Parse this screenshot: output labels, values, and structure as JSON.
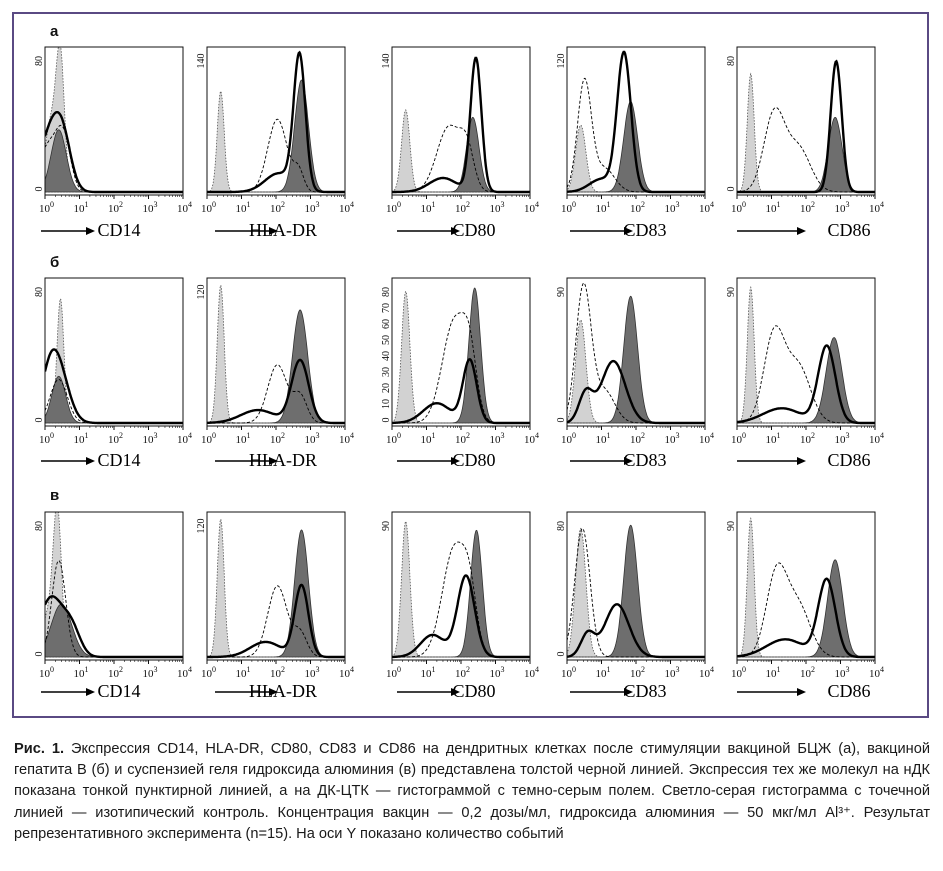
{
  "figure": {
    "rows": [
      {
        "letter": "а",
        "panels": [
          {
            "marker": "CD14",
            "y_ticks": [
              "80",
              "0"
            ]
          },
          {
            "marker": "HLA-DR",
            "y_ticks": [
              "140"
            ]
          },
          {
            "marker": "CD80",
            "y_ticks": [
              "140"
            ]
          },
          {
            "marker": "CD83",
            "y_ticks": [
              "120"
            ]
          },
          {
            "marker": "CD86",
            "y_ticks": [
              "80",
              "0"
            ]
          }
        ]
      },
      {
        "letter": "б",
        "panels": [
          {
            "marker": "CD14",
            "y_ticks": [
              "80",
              "0"
            ]
          },
          {
            "marker": "HLA-DR",
            "y_ticks": [
              "120"
            ]
          },
          {
            "marker": "CD80",
            "y_ticks": [
              "0",
              "10",
              "20",
              "30",
              "40",
              "50",
              "60",
              "70",
              "80"
            ]
          },
          {
            "marker": "CD83",
            "y_ticks": [
              "90",
              "0"
            ]
          },
          {
            "marker": "CD86",
            "y_ticks": [
              "90"
            ]
          }
        ]
      },
      {
        "letter": "в",
        "panels": [
          {
            "marker": "CD14",
            "y_ticks": [
              "80",
              "0"
            ]
          },
          {
            "marker": "HLA-DR",
            "y_ticks": [
              "120"
            ]
          },
          {
            "marker": "CD80",
            "y_ticks": [
              "90"
            ]
          },
          {
            "marker": "CD83",
            "y_ticks": [
              "80",
              "0"
            ]
          },
          {
            "marker": "CD86",
            "y_ticks": [
              "90"
            ]
          }
        ]
      }
    ],
    "x_tick_base": "10",
    "x_tick_exponents": [
      "0",
      "1",
      "2",
      "3",
      "4"
    ]
  },
  "caption": {
    "lead": "Рис. 1.",
    "text": "Экспрессия CD14, HLA-DR, CD80, CD83 и CD86 на дендритных клетках после стимуляции вакциной БЦЖ (а), вакциной гепатита В (б) и суспензией геля гидроксида алюминия (в) представлена толстой черной линией. Экспрессия тех же молекул на нДК показана тонкой пунктирной линией, а на ДК-ЦТК — гистограммой с темно-серым полем. Светло-серая гистограмма с точечной линией — изотипический контроль. Концентрация вакцин — 0,2 дозы/мл, гидроксида алюминия — 50 мкг/мл Al³⁺. Результат репрезентативного эксперимента (n=15). На оси Y показано количество событий"
  },
  "colors": {
    "frame": "#5a4a83",
    "isotype_fill": "#d2d2d2",
    "ctk_fill": "#6e6e6e",
    "vaccine_line": "#000000",
    "ndk_line": "#000000"
  },
  "histograms": {
    "x_scale": "log",
    "x_range": [
      1,
      10000
    ],
    "y_unit": "events",
    "series": [
      {
        "row": "а",
        "marker": "CD14",
        "y_max": 90,
        "isotype": [
          {
            "m": 2.8,
            "s": 0.12,
            "h": 80
          },
          {
            "m": 1.5,
            "s": 0.18,
            "h": 45
          }
        ],
        "ctk": [
          {
            "m": 2.5,
            "s": 0.22,
            "h": 40
          }
        ],
        "ndk": [
          {
            "m": 1.3,
            "s": 0.3,
            "h": 30
          },
          {
            "m": 3.5,
            "s": 0.2,
            "h": 30
          }
        ],
        "vaccine": [
          {
            "m": 1.3,
            "s": 0.3,
            "h": 34
          },
          {
            "m": 3.2,
            "s": 0.25,
            "h": 32
          }
        ]
      },
      {
        "row": "а",
        "marker": "HLA-DR",
        "y_max": 150,
        "isotype": [
          {
            "m": 2.5,
            "s": 0.1,
            "h": 108
          }
        ],
        "ctk": [
          {
            "m": 550,
            "s": 0.2,
            "h": 120
          }
        ],
        "ndk": [
          {
            "m": 110,
            "s": 0.28,
            "h": 78
          },
          {
            "m": 450,
            "s": 0.15,
            "h": 22
          }
        ],
        "vaccine": [
          {
            "m": 480,
            "s": 0.17,
            "h": 143
          },
          {
            "m": 120,
            "s": 0.4,
            "h": 20
          }
        ]
      },
      {
        "row": "а",
        "marker": "CD80",
        "y_max": 150,
        "isotype": [
          {
            "m": 2.5,
            "s": 0.12,
            "h": 88
          }
        ],
        "ctk": [
          {
            "m": 220,
            "s": 0.18,
            "h": 80
          }
        ],
        "ndk": [
          {
            "m": 45,
            "s": 0.35,
            "h": 70
          },
          {
            "m": 150,
            "s": 0.2,
            "h": 38
          }
        ],
        "vaccine": [
          {
            "m": 270,
            "s": 0.16,
            "h": 143
          },
          {
            "m": 30,
            "s": 0.4,
            "h": 15
          }
        ]
      },
      {
        "row": "а",
        "marker": "CD83",
        "y_max": 130,
        "isotype": [
          {
            "m": 2.5,
            "s": 0.15,
            "h": 62
          }
        ],
        "ctk": [
          {
            "m": 70,
            "s": 0.2,
            "h": 84
          }
        ],
        "ndk": [
          {
            "m": 3.2,
            "s": 0.2,
            "h": 102
          },
          {
            "m": 12,
            "s": 0.3,
            "h": 22
          }
        ],
        "vaccine": [
          {
            "m": 45,
            "s": 0.2,
            "h": 128
          },
          {
            "m": 10,
            "s": 0.35,
            "h": 12
          }
        ]
      },
      {
        "row": "а",
        "marker": "CD86",
        "y_max": 90,
        "isotype": [
          {
            "m": 2.5,
            "s": 0.1,
            "h": 76
          }
        ],
        "ctk": [
          {
            "m": 700,
            "s": 0.2,
            "h": 48
          }
        ],
        "ndk": [
          {
            "m": 12,
            "s": 0.3,
            "h": 50
          },
          {
            "m": 60,
            "s": 0.35,
            "h": 28
          }
        ],
        "vaccine": [
          {
            "m": 750,
            "s": 0.16,
            "h": 84
          }
        ]
      },
      {
        "row": "б",
        "marker": "CD14",
        "y_max": 90,
        "isotype": [
          {
            "m": 2.8,
            "s": 0.1,
            "h": 80
          }
        ],
        "ctk": [
          {
            "m": 2.5,
            "s": 0.2,
            "h": 30
          }
        ],
        "ndk": [
          {
            "m": 2.5,
            "s": 0.25,
            "h": 28
          }
        ],
        "vaccine": [
          {
            "m": 2.5,
            "s": 0.3,
            "h": 32
          },
          {
            "m": 1.3,
            "s": 0.25,
            "h": 22
          }
        ]
      },
      {
        "row": "б",
        "marker": "HLA-DR",
        "y_max": 130,
        "isotype": [
          {
            "m": 2.5,
            "s": 0.1,
            "h": 128
          }
        ],
        "ctk": [
          {
            "m": 500,
            "s": 0.22,
            "h": 105
          }
        ],
        "ndk": [
          {
            "m": 110,
            "s": 0.28,
            "h": 54
          },
          {
            "m": 500,
            "s": 0.2,
            "h": 25
          }
        ],
        "vaccine": [
          {
            "m": 500,
            "s": 0.25,
            "h": 58
          },
          {
            "m": 30,
            "s": 0.5,
            "h": 12
          }
        ]
      },
      {
        "row": "б",
        "marker": "CD80",
        "y_max": 85,
        "isotype": [
          {
            "m": 2.5,
            "s": 0.12,
            "h": 80
          }
        ],
        "ctk": [
          {
            "m": 250,
            "s": 0.17,
            "h": 82
          }
        ],
        "ndk": [
          {
            "m": 65,
            "s": 0.35,
            "h": 62
          },
          {
            "m": 180,
            "s": 0.2,
            "h": 30
          }
        ],
        "vaccine": [
          {
            "m": 180,
            "s": 0.2,
            "h": 38
          },
          {
            "m": 20,
            "s": 0.4,
            "h": 12
          }
        ]
      },
      {
        "row": "б",
        "marker": "CD83",
        "y_max": 95,
        "isotype": [
          {
            "m": 2.5,
            "s": 0.15,
            "h": 70
          }
        ],
        "ctk": [
          {
            "m": 70,
            "s": 0.2,
            "h": 86
          }
        ],
        "ndk": [
          {
            "m": 3.0,
            "s": 0.22,
            "h": 92
          },
          {
            "m": 12,
            "s": 0.3,
            "h": 22
          }
        ],
        "vaccine": [
          {
            "m": 22,
            "s": 0.35,
            "h": 42
          },
          {
            "m": 3.5,
            "s": 0.2,
            "h": 20
          }
        ]
      },
      {
        "row": "б",
        "marker": "CD86",
        "y_max": 95,
        "isotype": [
          {
            "m": 2.5,
            "s": 0.1,
            "h": 92
          }
        ],
        "ctk": [
          {
            "m": 650,
            "s": 0.23,
            "h": 58
          }
        ],
        "ndk": [
          {
            "m": 12,
            "s": 0.3,
            "h": 60
          },
          {
            "m": 60,
            "s": 0.35,
            "h": 38
          }
        ],
        "vaccine": [
          {
            "m": 400,
            "s": 0.25,
            "h": 52
          },
          {
            "m": 20,
            "s": 0.55,
            "h": 10
          }
        ]
      },
      {
        "row": "в",
        "marker": "CD14",
        "y_max": 90,
        "isotype": [
          {
            "m": 2.3,
            "s": 0.12,
            "h": 85
          },
          {
            "m": 1.3,
            "s": 0.2,
            "h": 28
          }
        ],
        "ctk": [
          {
            "m": 3.0,
            "s": 0.3,
            "h": 34
          }
        ],
        "ndk": [
          {
            "m": 2.5,
            "s": 0.2,
            "h": 62
          }
        ],
        "vaccine": [
          {
            "m": 1.5,
            "s": 0.35,
            "h": 38
          },
          {
            "m": 6,
            "s": 0.25,
            "h": 16
          }
        ]
      },
      {
        "row": "в",
        "marker": "HLA-DR",
        "y_max": 130,
        "isotype": [
          {
            "m": 2.5,
            "s": 0.1,
            "h": 128
          }
        ],
        "ctk": [
          {
            "m": 550,
            "s": 0.2,
            "h": 118
          }
        ],
        "ndk": [
          {
            "m": 110,
            "s": 0.28,
            "h": 66
          },
          {
            "m": 500,
            "s": 0.2,
            "h": 22
          }
        ],
        "vaccine": [
          {
            "m": 550,
            "s": 0.2,
            "h": 66
          },
          {
            "m": 50,
            "s": 0.45,
            "h": 14
          }
        ]
      },
      {
        "row": "в",
        "marker": "CD80",
        "y_max": 95,
        "isotype": [
          {
            "m": 2.5,
            "s": 0.12,
            "h": 92
          }
        ],
        "ctk": [
          {
            "m": 280,
            "s": 0.17,
            "h": 86
          }
        ],
        "ndk": [
          {
            "m": 65,
            "s": 0.35,
            "h": 74
          },
          {
            "m": 180,
            "s": 0.2,
            "h": 30
          }
        ],
        "vaccine": [
          {
            "m": 140,
            "s": 0.25,
            "h": 55
          },
          {
            "m": 15,
            "s": 0.35,
            "h": 15
          }
        ]
      },
      {
        "row": "в",
        "marker": "CD83",
        "y_max": 85,
        "isotype": [
          {
            "m": 2.5,
            "s": 0.15,
            "h": 78
          }
        ],
        "ctk": [
          {
            "m": 70,
            "s": 0.2,
            "h": 80
          }
        ],
        "ndk": [
          {
            "m": 2.8,
            "s": 0.22,
            "h": 78
          }
        ],
        "vaccine": [
          {
            "m": 28,
            "s": 0.35,
            "h": 32
          },
          {
            "m": 4,
            "s": 0.2,
            "h": 14
          }
        ]
      },
      {
        "row": "в",
        "marker": "CD86",
        "y_max": 95,
        "isotype": [
          {
            "m": 2.5,
            "s": 0.1,
            "h": 94
          }
        ],
        "ctk": [
          {
            "m": 700,
            "s": 0.22,
            "h": 66
          }
        ],
        "ndk": [
          {
            "m": 14,
            "s": 0.3,
            "h": 56
          },
          {
            "m": 60,
            "s": 0.35,
            "h": 34
          }
        ],
        "vaccine": [
          {
            "m": 400,
            "s": 0.25,
            "h": 52
          },
          {
            "m": 25,
            "s": 0.55,
            "h": 12
          }
        ]
      }
    ]
  }
}
